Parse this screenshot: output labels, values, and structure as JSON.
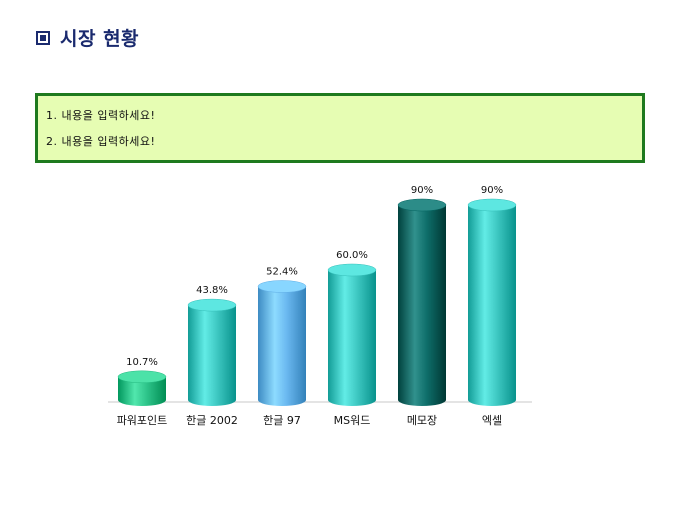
{
  "header": {
    "title": "시장 현황",
    "bullet_icon": "square-bullet-icon"
  },
  "content": {
    "lines": [
      "1. 내용을 입력하세요!",
      "2. 내용을 입력하세요!"
    ]
  },
  "colors": {
    "title": "#1a2a6e",
    "box_bg": "#e6fdb3",
    "box_border": "#1e7a1e"
  },
  "chart_data": {
    "type": "bar",
    "title": "",
    "xlabel": "",
    "ylabel": "",
    "ylim": [
      0,
      100
    ],
    "grid": false,
    "style": "3d-cylinder",
    "categories": [
      "파워포인트",
      "한글 2002",
      "한글 97",
      "MS워드",
      "메모장",
      "엑셀"
    ],
    "values": [
      10.7,
      43.8,
      52.4,
      60.0,
      90,
      90
    ],
    "data_labels": [
      "10.7%",
      "43.8%",
      "52.4%",
      "60.0%",
      "90%",
      "90%"
    ],
    "bar_colors": [
      "#2ec48a",
      "#3fc9c3",
      "#6ab8f0",
      "#3fc9c3",
      "#0e6e6a",
      "#3fc9c3"
    ]
  }
}
